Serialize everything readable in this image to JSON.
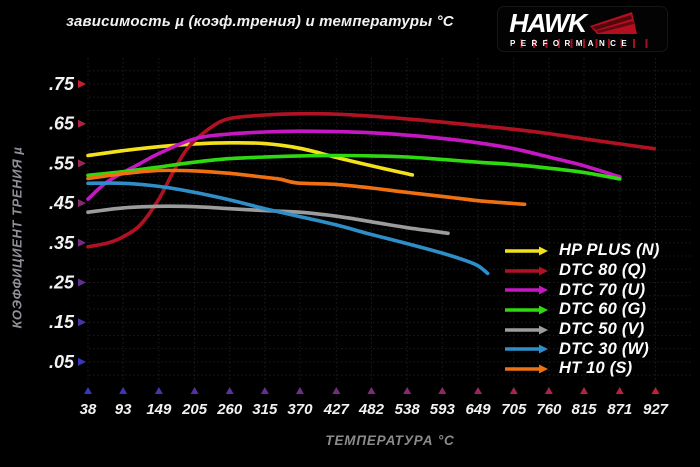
{
  "title": "зависимость µ (коэф.трения) и температуры °C",
  "logo": {
    "brand": "HAWK",
    "subtitle": "PERFORMANCE",
    "accent": "#b50f1f"
  },
  "chart_data": {
    "type": "line",
    "title": "зависимость µ (коэф.трения) и температуры °C",
    "xlabel": "ТЕМПЕРАТУРА °C",
    "ylabel": "КОЭФФИЦИЕНТ ТРЕНИЯ µ",
    "xlim": [
      38,
      927
    ],
    "ylim": [
      0,
      0.815
    ],
    "grid": true,
    "legend_position": "right-bottom",
    "x_ticks": [
      38,
      93,
      149,
      205,
      260,
      315,
      370,
      427,
      482,
      538,
      593,
      649,
      705,
      760,
      815,
      871,
      927
    ],
    "y_ticks": [
      0.75,
      0.65,
      0.55,
      0.45,
      0.35,
      0.25,
      0.15,
      0.05
    ],
    "y_tick_labels": [
      ".75",
      ".65",
      ".55",
      ".45",
      ".35",
      ".25",
      ".15",
      ".05"
    ],
    "style": {
      "axis_color_top_right": "#c51f33",
      "axis_color_bottom_left": "#3737bc",
      "grid_color": "#1d1d1d",
      "tick_text_color": "#f2f2f2",
      "axis_title_color": "#8b8b8b"
    },
    "series": [
      {
        "name": "HP PLUS (N)",
        "color": "#f3e11c",
        "points": [
          [
            38,
            0.57
          ],
          [
            93,
            0.582
          ],
          [
            149,
            0.592
          ],
          [
            205,
            0.599
          ],
          [
            260,
            0.602
          ],
          [
            315,
            0.6
          ],
          [
            370,
            0.588
          ],
          [
            427,
            0.565
          ],
          [
            482,
            0.544
          ],
          [
            520,
            0.53
          ],
          [
            546,
            0.521
          ]
        ]
      },
      {
        "name": "DTC 80 (Q)",
        "color": "#b01224",
        "points": [
          [
            38,
            0.34
          ],
          [
            70,
            0.35
          ],
          [
            93,
            0.365
          ],
          [
            120,
            0.395
          ],
          [
            149,
            0.46
          ],
          [
            172,
            0.53
          ],
          [
            195,
            0.59
          ],
          [
            230,
            0.64
          ],
          [
            260,
            0.663
          ],
          [
            315,
            0.672
          ],
          [
            370,
            0.675
          ],
          [
            427,
            0.674
          ],
          [
            482,
            0.669
          ],
          [
            538,
            0.662
          ],
          [
            593,
            0.654
          ],
          [
            649,
            0.645
          ],
          [
            705,
            0.636
          ],
          [
            760,
            0.625
          ],
          [
            815,
            0.612
          ],
          [
            871,
            0.599
          ],
          [
            925,
            0.587
          ]
        ]
      },
      {
        "name": "DTC 70 (U)",
        "color": "#c518c2",
        "points": [
          [
            38,
            0.46
          ],
          [
            65,
            0.5
          ],
          [
            93,
            0.527
          ],
          [
            120,
            0.55
          ],
          [
            149,
            0.575
          ],
          [
            205,
            0.612
          ],
          [
            260,
            0.624
          ],
          [
            315,
            0.629
          ],
          [
            370,
            0.631
          ],
          [
            427,
            0.63
          ],
          [
            482,
            0.627
          ],
          [
            538,
            0.621
          ],
          [
            593,
            0.613
          ],
          [
            649,
            0.602
          ],
          [
            705,
            0.587
          ],
          [
            760,
            0.566
          ],
          [
            815,
            0.544
          ],
          [
            871,
            0.516
          ]
        ]
      },
      {
        "name": "DTC 60 (G)",
        "color": "#2fd90f",
        "points": [
          [
            38,
            0.52
          ],
          [
            93,
            0.529
          ],
          [
            149,
            0.541
          ],
          [
            205,
            0.553
          ],
          [
            260,
            0.562
          ],
          [
            315,
            0.566
          ],
          [
            370,
            0.569
          ],
          [
            427,
            0.57
          ],
          [
            482,
            0.569
          ],
          [
            538,
            0.566
          ],
          [
            593,
            0.56
          ],
          [
            649,
            0.553
          ],
          [
            705,
            0.547
          ],
          [
            760,
            0.538
          ],
          [
            815,
            0.527
          ],
          [
            871,
            0.511
          ]
        ]
      },
      {
        "name": "DTC 50 (V)",
        "color": "#9c9c9c",
        "points": [
          [
            38,
            0.427
          ],
          [
            93,
            0.438
          ],
          [
            149,
            0.442
          ],
          [
            205,
            0.441
          ],
          [
            260,
            0.436
          ],
          [
            315,
            0.431
          ],
          [
            370,
            0.427
          ],
          [
            427,
            0.417
          ],
          [
            482,
            0.403
          ],
          [
            538,
            0.388
          ],
          [
            575,
            0.38
          ],
          [
            602,
            0.374
          ]
        ]
      },
      {
        "name": "DTC 30 (W)",
        "color": "#2e8fc8",
        "points": [
          [
            38,
            0.5
          ],
          [
            93,
            0.5
          ],
          [
            149,
            0.492
          ],
          [
            205,
            0.477
          ],
          [
            260,
            0.458
          ],
          [
            315,
            0.436
          ],
          [
            370,
            0.416
          ],
          [
            427,
            0.395
          ],
          [
            482,
            0.371
          ],
          [
            538,
            0.348
          ],
          [
            593,
            0.324
          ],
          [
            630,
            0.305
          ],
          [
            649,
            0.292
          ],
          [
            664,
            0.273
          ]
        ]
      },
      {
        "name": "HT 10 (S)",
        "color": "#ef7010",
        "points": [
          [
            38,
            0.512
          ],
          [
            93,
            0.524
          ],
          [
            149,
            0.532
          ],
          [
            205,
            0.531
          ],
          [
            260,
            0.525
          ],
          [
            315,
            0.515
          ],
          [
            340,
            0.51
          ],
          [
            365,
            0.501
          ],
          [
            427,
            0.497
          ],
          [
            482,
            0.488
          ],
          [
            538,
            0.477
          ],
          [
            593,
            0.467
          ],
          [
            649,
            0.456
          ],
          [
            705,
            0.449
          ],
          [
            722,
            0.447
          ]
        ]
      }
    ]
  }
}
